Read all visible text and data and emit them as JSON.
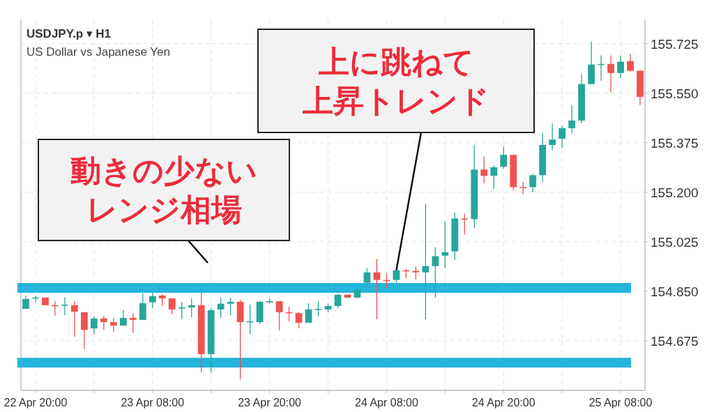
{
  "chart_data": {
    "type": "candlestick",
    "title": "USDJPY.p ▾ H1",
    "subtitle": "US Dollar vs Japanese Yen",
    "x": [
      "--04-22T19:00",
      "--04-22T20:00",
      "--04-22T21:00",
      "--04-22T22:00",
      "--04-22T23:00",
      "--04-23T00:00",
      "--04-23T01:00",
      "--04-23T02:00",
      "--04-23T03:00",
      "--04-23T04:00",
      "--04-23T05:00",
      "--04-23T06:00",
      "--04-23T07:00",
      "--04-23T08:00",
      "--04-23T09:00",
      "--04-23T10:00",
      "--04-23T11:00",
      "--04-23T12:00",
      "--04-23T13:00",
      "--04-23T14:00",
      "--04-23T15:00",
      "--04-23T16:00",
      "--04-23T17:00",
      "--04-23T18:00",
      "--04-23T19:00",
      "--04-23T20:00",
      "--04-23T21:00",
      "--04-23T22:00",
      "--04-23T23:00",
      "--04-24T00:00",
      "--04-24T01:00",
      "--04-24T02:00",
      "--04-24T03:00",
      "--04-24T04:00",
      "--04-24T05:00",
      "--04-24T06:00",
      "--04-24T07:00",
      "--04-24T08:00",
      "--04-24T09:00",
      "--04-24T10:00",
      "--04-24T11:00",
      "--04-24T12:00",
      "--04-24T13:00",
      "--04-24T14:00",
      "--04-24T15:00",
      "--04-24T16:00",
      "--04-24T17:00",
      "--04-24T18:00",
      "--04-24T19:00",
      "--04-24T20:00",
      "--04-24T21:00",
      "--04-24T22:00",
      "--04-24T23:00",
      "--04-25T00:00",
      "--04-25T01:00",
      "--04-25T02:00",
      "--04-25T03:00",
      "--04-25T04:00",
      "--04-25T05:00",
      "--04-25T06:00",
      "--04-25T07:00",
      "--04-25T08:00",
      "--04-25T09:00",
      "--04-25T10:00"
    ],
    "ohlc": [
      [
        154.788,
        154.835,
        154.788,
        154.823
      ],
      [
        154.825,
        154.835,
        154.813,
        154.828
      ],
      [
        154.828,
        154.828,
        154.801,
        154.801
      ],
      [
        154.801,
        154.815,
        154.764,
        154.798
      ],
      [
        154.801,
        154.83,
        154.766,
        154.803
      ],
      [
        154.801,
        154.815,
        154.689,
        154.778
      ],
      [
        154.776,
        154.776,
        154.645,
        154.714
      ],
      [
        154.719,
        154.761,
        154.699,
        154.754
      ],
      [
        154.754,
        154.764,
        154.714,
        154.741
      ],
      [
        154.741,
        154.754,
        154.707,
        154.729
      ],
      [
        154.729,
        154.783,
        154.729,
        154.756
      ],
      [
        154.756,
        154.773,
        154.704,
        154.749
      ],
      [
        154.749,
        154.843,
        154.749,
        154.808
      ],
      [
        154.811,
        154.845,
        154.791,
        154.833
      ],
      [
        154.835,
        154.84,
        154.798,
        154.825
      ],
      [
        154.825,
        154.825,
        154.769,
        154.786
      ],
      [
        154.791,
        154.813,
        154.751,
        154.793
      ],
      [
        154.793,
        154.825,
        154.759,
        154.801
      ],
      [
        154.801,
        154.845,
        154.563,
        154.628
      ],
      [
        154.628,
        154.791,
        154.563,
        154.783
      ],
      [
        154.786,
        154.828,
        154.756,
        154.806
      ],
      [
        154.806,
        154.828,
        154.766,
        154.813
      ],
      [
        154.813,
        154.82,
        154.539,
        154.741
      ],
      [
        154.741,
        154.803,
        154.699,
        154.744
      ],
      [
        154.741,
        154.815,
        154.734,
        154.813
      ],
      [
        154.811,
        154.825,
        154.806,
        154.815
      ],
      [
        154.815,
        154.815,
        154.712,
        154.776
      ],
      [
        154.776,
        154.796,
        154.744,
        154.773
      ],
      [
        154.773,
        154.776,
        154.719,
        154.739
      ],
      [
        154.739,
        154.808,
        154.739,
        154.786
      ],
      [
        154.786,
        154.815,
        154.761,
        154.788
      ],
      [
        154.786,
        154.808,
        154.776,
        154.798
      ],
      [
        154.798,
        154.84,
        154.791,
        154.838
      ],
      [
        154.838,
        154.84,
        154.825,
        154.828
      ],
      [
        154.828,
        154.86,
        154.825,
        154.855
      ],
      [
        154.88,
        154.932,
        154.87,
        154.917
      ],
      [
        154.917,
        154.964,
        154.751,
        154.89
      ],
      [
        154.89,
        154.914,
        154.862,
        154.887
      ],
      [
        154.89,
        154.924,
        154.88,
        154.924
      ],
      [
        154.924,
        154.929,
        154.895,
        154.922
      ],
      [
        154.922,
        154.937,
        154.892,
        154.917
      ],
      [
        154.917,
        155.159,
        154.751,
        154.939
      ],
      [
        154.939,
        155.006,
        154.828,
        154.974
      ],
      [
        154.976,
        155.097,
        154.932,
        154.988
      ],
      [
        154.991,
        155.127,
        154.961,
        155.107
      ],
      [
        155.107,
        155.124,
        155.05,
        155.105
      ],
      [
        155.105,
        155.367,
        155.075,
        155.28
      ],
      [
        155.28,
        155.325,
        155.231,
        155.258
      ],
      [
        155.258,
        155.295,
        155.211,
        155.288
      ],
      [
        155.29,
        155.362,
        155.283,
        155.332
      ],
      [
        155.332,
        155.332,
        155.206,
        155.218
      ],
      [
        155.218,
        155.236,
        155.194,
        155.216
      ],
      [
        155.218,
        155.265,
        155.199,
        155.26
      ],
      [
        155.26,
        155.409,
        155.236,
        155.367
      ],
      [
        155.367,
        155.443,
        155.347,
        155.386
      ],
      [
        155.389,
        155.436,
        155.357,
        155.426
      ],
      [
        155.426,
        155.508,
        155.409,
        155.453
      ],
      [
        155.453,
        155.616,
        155.443,
        155.582
      ],
      [
        155.582,
        155.732,
        155.582,
        155.651
      ],
      [
        155.651,
        155.683,
        155.594,
        155.653
      ],
      [
        155.653,
        155.683,
        155.552,
        155.621
      ],
      [
        155.621,
        155.683,
        155.604,
        155.661
      ],
      [
        155.663,
        155.688,
        155.626,
        155.629
      ],
      [
        155.629,
        155.631,
        155.508,
        155.537
      ]
    ],
    "colors": [
      "#26a69a",
      "#26a69a",
      "#ef5350",
      "#ef5350",
      "#26a69a",
      "#ef5350",
      "#ef5350",
      "#26a69a",
      "#ef5350",
      "#ef5350",
      "#26a69a",
      "#ef5350",
      "#26a69a",
      "#26a69a",
      "#ef5350",
      "#ef5350",
      "#26a69a",
      "#26a69a",
      "#ef5350",
      "#26a69a",
      "#26a69a",
      "#26a69a",
      "#ef5350",
      "#26a69a",
      "#26a69a",
      "#26a69a",
      "#ef5350",
      "#ef5350",
      "#ef5350",
      "#26a69a",
      "#26a69a",
      "#26a69a",
      "#26a69a",
      "#ef5350",
      "#26a69a",
      "#26a69a",
      "#ef5350",
      "#ef5350",
      "#26a69a",
      "#ef5350",
      "#ef5350",
      "#26a69a",
      "#26a69a",
      "#26a69a",
      "#26a69a",
      "#ef5350",
      "#26a69a",
      "#ef5350",
      "#26a69a",
      "#26a69a",
      "#ef5350",
      "#ef5350",
      "#26a69a",
      "#26a69a",
      "#26a69a",
      "#26a69a",
      "#26a69a",
      "#26a69a",
      "#26a69a",
      "#26a69a",
      "#ef5350",
      "#26a69a",
      "#ef5350",
      "#ef5350"
    ],
    "xlim": [
      "--04-22T18:30",
      "--04-25T10:30"
    ],
    "xticks": [
      {
        "value": "--04-22T20:00",
        "label": "22 Apr 20:00"
      },
      {
        "value": "--04-23T02:00",
        "label": null
      },
      {
        "value": "--04-23T08:00",
        "label": "23 Apr 08:00"
      },
      {
        "value": "--04-23T14:00",
        "label": null
      },
      {
        "value": "--04-23T20:00",
        "label": "23 Apr 20:00"
      },
      {
        "value": "--04-24T02:00",
        "label": null
      },
      {
        "value": "--04-24T08:00",
        "label": "24 Apr 08:00"
      },
      {
        "value": "--04-24T14:00",
        "label": null
      },
      {
        "value": "--04-24T20:00",
        "label": "24 Apr 20:00"
      },
      {
        "value": "--04-25T02:00",
        "label": null
      },
      {
        "value": "--04-25T08:00",
        "label": "25 Apr 08:00"
      }
    ],
    "ylim": [
      154.5,
      155.81
    ],
    "yticks": [
      154.675,
      {
        "value": 154.85,
        "label": "154.850"
      },
      155.025,
      {
        "value": 155.2,
        "label": "155.200"
      },
      155.375,
      {
        "value": 155.55,
        "label": "155.550"
      },
      155.725
    ],
    "grid": true,
    "ref_lines": [
      {
        "axis": "y",
        "value": 154.862,
        "color": "#25b4dc"
      },
      {
        "axis": "y",
        "value": 154.598,
        "color": "#25b4dc"
      }
    ],
    "annotations": [
      {
        "text": "上に跳ねて上昇トレンド",
        "x": "--04-24T09:00",
        "y": 154.924
      },
      "動きの少ないレンジ相場"
    ]
  }
}
